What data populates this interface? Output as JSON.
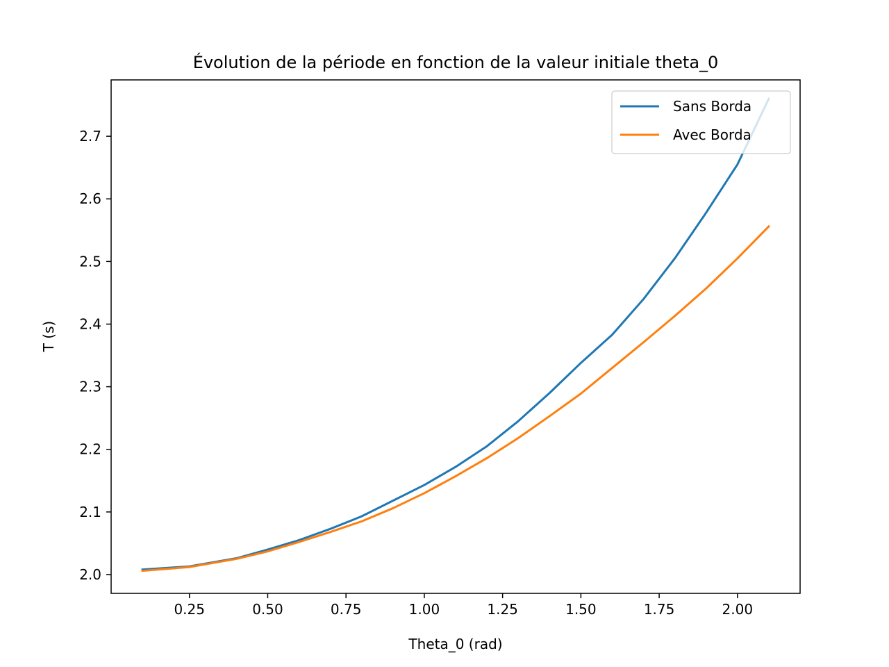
{
  "chart_data": {
    "type": "line",
    "title": "Évolution de la période en fonction de la valeur initiale theta_0",
    "xlabel": "Theta_0 (rad)",
    "ylabel": "T (s)",
    "xlim": [
      -0.0,
      2.2
    ],
    "ylim": [
      1.97,
      2.79
    ],
    "x_ticks": [
      0.25,
      0.5,
      0.75,
      1.0,
      1.25,
      1.5,
      1.75,
      2.0
    ],
    "x_tick_labels": [
      "0.25",
      "0.50",
      "0.75",
      "1.00",
      "1.25",
      "1.50",
      "1.75",
      "2.00"
    ],
    "y_ticks": [
      2.0,
      2.1,
      2.2,
      2.3,
      2.4,
      2.5,
      2.6,
      2.7
    ],
    "y_tick_labels": [
      "2.0",
      "2.1",
      "2.2",
      "2.3",
      "2.4",
      "2.5",
      "2.6",
      "2.7"
    ],
    "grid": false,
    "legend_position": "top-right",
    "series": [
      {
        "name": "Sans Borda",
        "color": "#1f77b4",
        "x": [
          0.1,
          0.25,
          0.4,
          0.5,
          0.6,
          0.7,
          0.8,
          0.9,
          1.0,
          1.1,
          1.2,
          1.3,
          1.4,
          1.5,
          1.6,
          1.7,
          1.8,
          1.9,
          2.0,
          2.1
        ],
        "y": [
          2.008,
          2.013,
          2.026,
          2.04,
          2.055,
          2.073,
          2.093,
          2.118,
          2.143,
          2.172,
          2.205,
          2.245,
          2.29,
          2.338,
          2.383,
          2.44,
          2.505,
          2.578,
          2.655,
          2.76
        ]
      },
      {
        "name": "Avec Borda",
        "color": "#ff7f0e",
        "x": [
          0.1,
          0.25,
          0.4,
          0.5,
          0.6,
          0.7,
          0.8,
          0.9,
          1.0,
          1.1,
          1.2,
          1.3,
          1.4,
          1.5,
          1.6,
          1.7,
          1.8,
          1.9,
          2.0,
          2.1
        ],
        "y": [
          2.006,
          2.012,
          2.025,
          2.037,
          2.052,
          2.068,
          2.085,
          2.106,
          2.13,
          2.157,
          2.186,
          2.218,
          2.253,
          2.289,
          2.33,
          2.371,
          2.413,
          2.457,
          2.505,
          2.556
        ]
      }
    ]
  }
}
